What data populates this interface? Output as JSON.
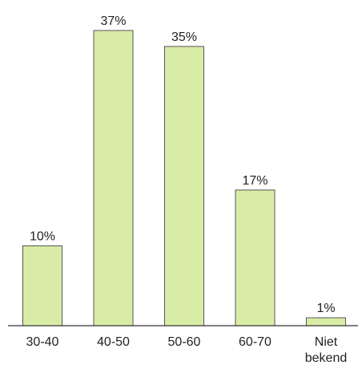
{
  "chart_data": {
    "type": "bar",
    "categories": [
      "30-40",
      "40-50",
      "50-60",
      "60-70",
      "Niet bekend"
    ],
    "category_lines": [
      [
        "30-40"
      ],
      [
        "40-50"
      ],
      [
        "50-60"
      ],
      [
        "60-70"
      ],
      [
        "Niet",
        "bekend"
      ]
    ],
    "values": [
      10,
      37,
      35,
      17,
      1
    ],
    "value_labels": [
      "10%",
      "37%",
      "35%",
      "17%",
      "1%"
    ],
    "unit": "%",
    "title": "",
    "xlabel": "",
    "ylabel": "",
    "ylim": [
      0,
      37
    ],
    "grid": false,
    "legend": "none",
    "bar_color": "#d9eca7",
    "bar_border_color": "#555555"
  }
}
